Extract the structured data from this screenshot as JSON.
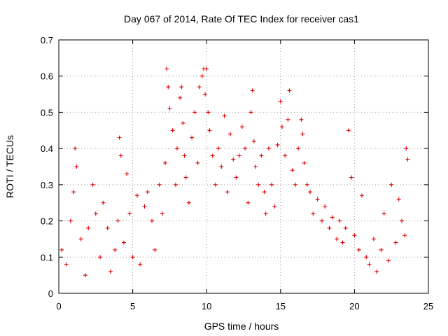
{
  "chart_data": {
    "type": "scatter",
    "title": "Day 067 of 2014, Rate Of TEC Index for receiver cas1",
    "xlabel": "GPS time / hours",
    "ylabel": "ROTI / TECUs",
    "xlim": [
      0,
      25
    ],
    "ylim": [
      0,
      0.7
    ],
    "xticks": [
      "0",
      "5",
      "10",
      "15",
      "20",
      "25"
    ],
    "yticks": [
      "0",
      "0.1",
      "0.2",
      "0.3",
      "0.4",
      "0.5",
      "0.6",
      "0.7"
    ],
    "grid": true,
    "marker": "+",
    "marker_color": "#e00000",
    "series": [
      {
        "name": "ROTI",
        "x": [
          0.2,
          0.5,
          0.8,
          1.0,
          1.1,
          1.2,
          1.5,
          1.8,
          2.0,
          2.3,
          2.5,
          2.8,
          3.0,
          3.3,
          3.5,
          3.8,
          4.0,
          4.1,
          4.2,
          4.4,
          4.6,
          4.8,
          5.0,
          5.3,
          5.5,
          5.8,
          6.0,
          6.3,
          6.5,
          6.8,
          7.0,
          7.2,
          7.3,
          7.4,
          7.5,
          7.7,
          7.9,
          8.0,
          8.2,
          8.3,
          8.4,
          8.5,
          8.6,
          8.8,
          9.0,
          9.2,
          9.4,
          9.5,
          9.7,
          9.8,
          9.9,
          10.0,
          10.1,
          10.2,
          10.4,
          10.6,
          10.8,
          11.0,
          11.2,
          11.4,
          11.6,
          11.8,
          12.0,
          12.2,
          12.4,
          12.6,
          12.8,
          13.0,
          13.1,
          13.2,
          13.3,
          13.5,
          13.7,
          13.9,
          14.0,
          14.2,
          14.4,
          14.6,
          14.8,
          15.0,
          15.1,
          15.3,
          15.5,
          15.6,
          15.8,
          16.0,
          16.2,
          16.4,
          16.5,
          16.6,
          16.8,
          17.0,
          17.2,
          17.5,
          17.8,
          18.0,
          18.3,
          18.5,
          18.8,
          19.0,
          19.2,
          19.4,
          19.6,
          19.8,
          20.0,
          20.3,
          20.5,
          20.8,
          21.0,
          21.3,
          21.5,
          21.8,
          22.0,
          22.3,
          22.5,
          22.8,
          23.0,
          23.2,
          23.4,
          23.5,
          23.6
        ],
        "y": [
          0.12,
          0.08,
          0.2,
          0.28,
          0.4,
          0.35,
          0.15,
          0.05,
          0.18,
          0.3,
          0.22,
          0.1,
          0.25,
          0.18,
          0.06,
          0.12,
          0.2,
          0.43,
          0.38,
          0.14,
          0.33,
          0.22,
          0.1,
          0.27,
          0.08,
          0.24,
          0.28,
          0.2,
          0.12,
          0.3,
          0.22,
          0.36,
          0.62,
          0.57,
          0.51,
          0.45,
          0.3,
          0.4,
          0.54,
          0.57,
          0.47,
          0.38,
          0.32,
          0.25,
          0.43,
          0.5,
          0.36,
          0.57,
          0.6,
          0.62,
          0.55,
          0.62,
          0.5,
          0.45,
          0.38,
          0.3,
          0.4,
          0.35,
          0.49,
          0.28,
          0.44,
          0.37,
          0.32,
          0.38,
          0.46,
          0.4,
          0.25,
          0.5,
          0.56,
          0.42,
          0.35,
          0.3,
          0.38,
          0.28,
          0.22,
          0.4,
          0.3,
          0.24,
          0.41,
          0.53,
          0.46,
          0.38,
          0.48,
          0.56,
          0.34,
          0.3,
          0.4,
          0.48,
          0.44,
          0.36,
          0.3,
          0.28,
          0.22,
          0.26,
          0.2,
          0.24,
          0.18,
          0.21,
          0.15,
          0.2,
          0.14,
          0.18,
          0.45,
          0.32,
          0.16,
          0.12,
          0.27,
          0.1,
          0.08,
          0.15,
          0.06,
          0.12,
          0.22,
          0.09,
          0.3,
          0.14,
          0.26,
          0.2,
          0.16,
          0.4,
          0.37
        ]
      }
    ]
  }
}
